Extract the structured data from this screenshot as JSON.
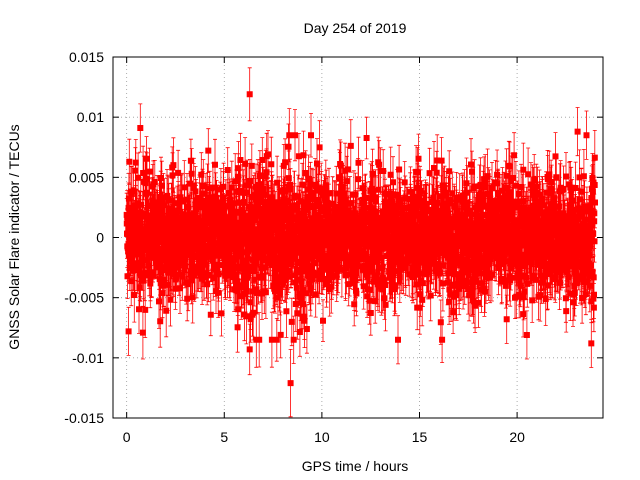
{
  "chart_data": {
    "type": "scatter",
    "title": "Day 254 of 2019",
    "xlabel": "GPS time / hours",
    "ylabel": "GNSS Solar Flare indicator / TECUs",
    "xlim": [
      -0.7,
      24.4
    ],
    "ylim": [
      -0.015,
      0.015
    ],
    "x_ticks": [
      0,
      5,
      10,
      15,
      20
    ],
    "x_tick_labels": [
      "0",
      "5",
      "10",
      "15",
      "20"
    ],
    "y_ticks": [
      -0.015,
      -0.01,
      -0.005,
      0,
      0.005,
      0.01,
      0.015
    ],
    "y_tick_labels": [
      "-0.015",
      "-0.01",
      "-0.005",
      "0",
      "0.005",
      "0.01",
      "0.015"
    ],
    "grid": true,
    "series_color": "#ff0000",
    "series": [
      {
        "name": "solar flare indicator",
        "marker": "square",
        "error_bars": true,
        "n_points": 2880,
        "x_range": [
          0.0,
          23.99
        ],
        "typical_range": [
          -0.006,
          0.006
        ],
        "typical_error": 0.002,
        "notable_points": [
          {
            "x": 6.3,
            "y": 0.0119,
            "err": 0.0022
          },
          {
            "x": 0.7,
            "y": 0.0091,
            "err": 0.002
          },
          {
            "x": 8.4,
            "y": -0.0121,
            "err": 0.0028
          },
          {
            "x": 6.3,
            "y": -0.0093,
            "err": 0.0021
          },
          {
            "x": 23.8,
            "y": -0.0088,
            "err": 0.002
          },
          {
            "x": 20.5,
            "y": -0.0081,
            "err": 0.002
          },
          {
            "x": 0.1,
            "y": -0.0078,
            "err": 0.002
          },
          {
            "x": 13.9,
            "y": -0.0085,
            "err": 0.002
          },
          {
            "x": 23.1,
            "y": 0.0088,
            "err": 0.002
          }
        ]
      }
    ]
  }
}
